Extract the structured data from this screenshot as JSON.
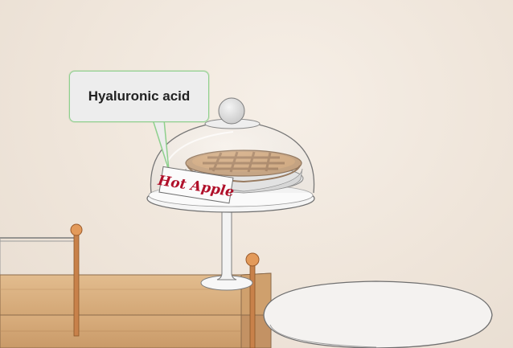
{
  "tooltip": {
    "text": "Hyaluronic acid"
  },
  "pie_label": {
    "text": "Hot Apple"
  },
  "colors": {
    "wall": "#efe6dc",
    "tooltip_border": "#8fd08d",
    "tooltip_bg": "#ededed",
    "label_text": "#b0102a",
    "counter": "#d6a978",
    "rail": "#c8814a",
    "pie_crust": "#b88a5c"
  }
}
